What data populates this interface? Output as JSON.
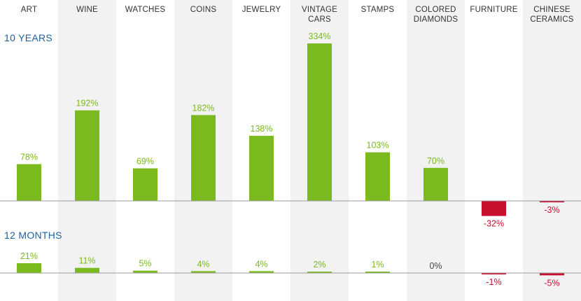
{
  "chart_data": {
    "type": "bar",
    "categories": [
      [
        "ART"
      ],
      [
        "WINE"
      ],
      [
        "WATCHES"
      ],
      [
        "COINS"
      ],
      [
        "JEWELRY"
      ],
      [
        "VINTAGE",
        "CARS"
      ],
      [
        "STAMPS"
      ],
      [
        "COLORED",
        "DIAMONDS"
      ],
      [
        "FURNITURE"
      ],
      [
        "CHINESE",
        "CERAMICS"
      ]
    ],
    "panels": [
      {
        "label": "10 YEARS",
        "unit": "%",
        "values": [
          78,
          192,
          69,
          182,
          138,
          334,
          103,
          70,
          -32,
          -3
        ]
      },
      {
        "label": "12 MONTHS",
        "unit": "%",
        "values": [
          21,
          11,
          5,
          4,
          4,
          2,
          1,
          0,
          -1,
          -5
        ]
      }
    ],
    "colors": {
      "positive": "#7aba1e",
      "negative": "#c8102e",
      "zero_label": "#444444",
      "axis": "#9a9a9a",
      "column_shade": "#f2f2f2",
      "section_label": "#1f5f9e",
      "category_label": "#333333"
    },
    "shaded_columns": [
      1,
      3,
      5,
      7,
      9
    ],
    "grid": false,
    "legend": "none"
  }
}
